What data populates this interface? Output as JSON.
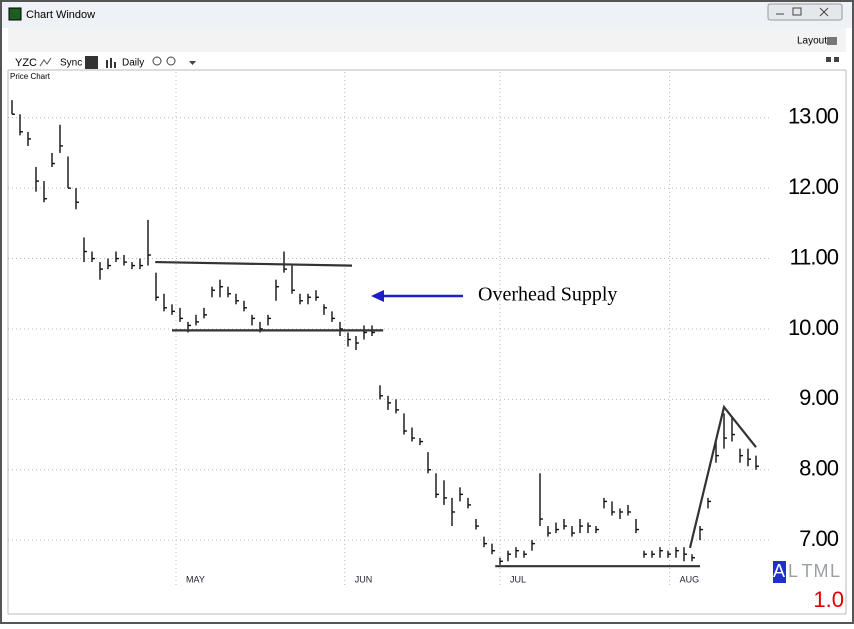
{
  "window": {
    "title": "Chart Window",
    "layout": "Layout",
    "toolbar": {
      "symbol": "YZC",
      "sync": "Sync",
      "period": "Daily"
    },
    "panel_title": "Price Chart",
    "scale_modes": [
      "A",
      "L",
      "T",
      "M",
      "L"
    ],
    "zoom": "1.0"
  },
  "chart_data": {
    "type": "ohlc",
    "annotation": "Overhead Supply",
    "highs": [
      13.25,
      13.05,
      12.8,
      12.3,
      12.1,
      12.5,
      12.9,
      12.45,
      12.0,
      11.3,
      11.1,
      10.95,
      11.0,
      11.1,
      11.05,
      10.95,
      11.0,
      11.55,
      10.8,
      10.5,
      10.35,
      10.3,
      10.1,
      10.2,
      10.3,
      10.6,
      10.7,
      10.6,
      10.5,
      10.4,
      10.2,
      10.1,
      10.2,
      10.7,
      11.1,
      10.9,
      10.5,
      10.5,
      10.55,
      10.35,
      10.25,
      10.1,
      9.95,
      9.9,
      10.05,
      10.05,
      9.2,
      9.05,
      9.0,
      8.8,
      8.6,
      8.45,
      8.25,
      7.95,
      7.85,
      7.6,
      7.75,
      7.6,
      7.3,
      7.05,
      6.95,
      6.75,
      6.85,
      6.9,
      6.85,
      7.0,
      7.95,
      7.2,
      7.25,
      7.3,
      7.2,
      7.3,
      7.25,
      7.2,
      7.6,
      7.55,
      7.45,
      7.5,
      7.3,
      6.85,
      6.85,
      6.9,
      6.85,
      6.9,
      6.9,
      6.8,
      7.2,
      7.6,
      8.4,
      8.8,
      8.75,
      8.3,
      8.3,
      8.2
    ],
    "lows": [
      13.05,
      12.75,
      12.6,
      11.95,
      11.8,
      12.3,
      12.5,
      12.0,
      11.7,
      10.95,
      10.95,
      10.7,
      10.85,
      10.95,
      10.9,
      10.85,
      10.85,
      10.9,
      10.4,
      10.25,
      10.2,
      10.1,
      9.95,
      10.05,
      10.15,
      10.45,
      10.45,
      10.45,
      10.35,
      10.25,
      10.05,
      9.95,
      10.05,
      10.4,
      10.8,
      10.5,
      10.35,
      10.35,
      10.4,
      10.2,
      10.1,
      9.9,
      9.75,
      9.7,
      9.85,
      9.9,
      9.0,
      8.85,
      8.8,
      8.5,
      8.4,
      8.35,
      7.95,
      7.6,
      7.5,
      7.2,
      7.55,
      7.45,
      7.15,
      6.9,
      6.8,
      6.65,
      6.7,
      6.75,
      6.75,
      6.85,
      7.2,
      7.05,
      7.1,
      7.15,
      7.05,
      7.1,
      7.1,
      7.1,
      7.45,
      7.35,
      7.3,
      7.35,
      7.1,
      6.75,
      6.75,
      6.75,
      6.75,
      6.75,
      6.7,
      6.7,
      7.0,
      7.45,
      8.1,
      8.3,
      8.4,
      8.1,
      8.05,
      8.0
    ],
    "closes": [
      13.05,
      12.8,
      12.7,
      12.1,
      11.85,
      12.35,
      12.6,
      12.0,
      11.8,
      11.1,
      11.0,
      10.85,
      10.9,
      11.0,
      10.95,
      10.9,
      10.9,
      11.05,
      10.45,
      10.3,
      10.25,
      10.15,
      10.05,
      10.1,
      10.2,
      10.55,
      10.6,
      10.5,
      10.4,
      10.3,
      10.15,
      10.0,
      10.15,
      10.6,
      10.85,
      10.55,
      10.4,
      10.45,
      10.45,
      10.3,
      10.15,
      10.0,
      9.85,
      9.8,
      9.95,
      9.95,
      9.05,
      8.95,
      8.85,
      8.55,
      8.45,
      8.4,
      8.0,
      7.65,
      7.6,
      7.4,
      7.65,
      7.5,
      7.2,
      6.95,
      6.85,
      6.7,
      6.8,
      6.85,
      6.8,
      6.95,
      7.3,
      7.1,
      7.15,
      7.2,
      7.1,
      7.2,
      7.2,
      7.15,
      7.55,
      7.4,
      7.4,
      7.4,
      7.15,
      6.8,
      6.8,
      6.85,
      6.8,
      6.85,
      6.8,
      6.75,
      7.15,
      7.55,
      8.2,
      8.45,
      8.5,
      8.2,
      8.15,
      8.05
    ],
    "trend_lines": [
      {
        "x": [
          17.9,
          42.5
        ],
        "y": [
          10.95,
          10.9
        ]
      },
      {
        "x": [
          20,
          46.4
        ],
        "y": [
          9.98,
          9.98
        ]
      },
      {
        "x": [
          60.4,
          86
        ],
        "y": [
          6.63,
          6.63
        ]
      },
      {
        "x": [
          84.75,
          89,
          93
        ],
        "y": [
          6.89,
          8.89,
          8.32
        ]
      }
    ],
    "xlim": [
      -0.5,
      94.75
    ],
    "xticks": [
      {
        "value": 20.5,
        "label": "MAY"
      },
      {
        "value": 41.6,
        "label": "JUN"
      },
      {
        "value": 61,
        "label": "JUL"
      },
      {
        "value": 82.2,
        "label": "AUG"
      }
    ],
    "ylim": [
      6.32,
      13.65
    ],
    "yticks": [
      {
        "value": 7,
        "label": "7.00"
      },
      {
        "value": 8,
        "label": "8.00"
      },
      {
        "value": 9,
        "label": "9.00"
      },
      {
        "value": 10,
        "label": "10.00"
      },
      {
        "value": 11,
        "label": "11.00"
      },
      {
        "value": 12,
        "label": "12.00"
      },
      {
        "value": 13,
        "label": "13.00"
      }
    ],
    "grid": true,
    "color": "#111111",
    "trend_color": "#333333"
  }
}
